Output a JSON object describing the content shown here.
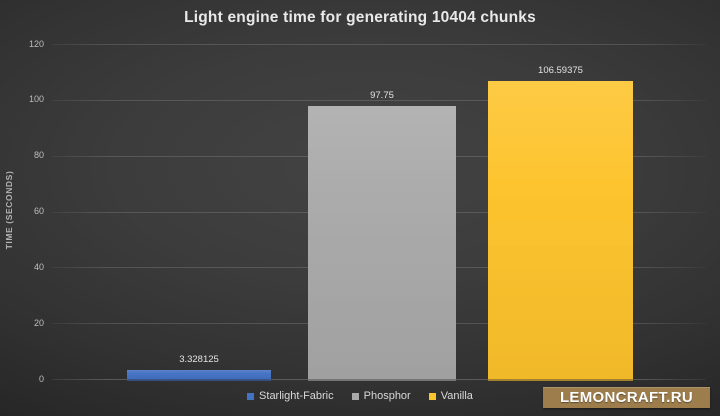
{
  "chart_data": {
    "type": "bar",
    "title": "Light engine time for generating 10404 chunks",
    "categories": [
      "Starlight-Fabric",
      "Phosphor",
      "Vanilla"
    ],
    "values": [
      3.328125,
      97.75,
      106.59375
    ],
    "data_labels": [
      "3.328125",
      "97.75",
      "106.59375"
    ],
    "bar_colors": [
      "#4472c4",
      "#a9a9a9",
      "#fdc32b"
    ],
    "xlabel": "",
    "ylabel": "TIME (SECONDS)",
    "ylim": [
      0,
      120
    ],
    "ytick_labels": [
      "0",
      "20",
      "40",
      "60",
      "80",
      "100",
      "120"
    ],
    "ytick_values": [
      0,
      20,
      40,
      60,
      80,
      100,
      120
    ],
    "grid": true,
    "legend_position": "bottom",
    "legend": [
      {
        "label": "Starlight-Fabric",
        "color": "#4472c4"
      },
      {
        "label": "Phosphor",
        "color": "#a9a9a9"
      },
      {
        "label": "Vanilla",
        "color": "#fdc32b"
      }
    ]
  },
  "watermark": {
    "text": "LEMONCRAFT.RU",
    "bg_color": "#9d7d4b"
  },
  "theme": {
    "background_center": "#434343",
    "background_edge": "#1a1a1a",
    "title_color": "#e9e9e9"
  }
}
